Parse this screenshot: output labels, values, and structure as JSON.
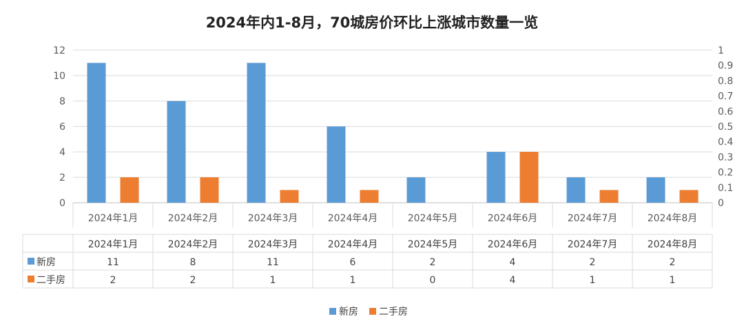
{
  "chart_data": {
    "type": "bar",
    "title": "2024年内1-8月，70城房价环比上涨城市数量一览",
    "categories": [
      "2024年1月",
      "2024年2月",
      "2024年3月",
      "2024年4月",
      "2024年5月",
      "2024年6月",
      "2024年7月",
      "2024年8月"
    ],
    "series": [
      {
        "name": "新房",
        "values": [
          11,
          8,
          11,
          6,
          2,
          4,
          2,
          2
        ],
        "color": "#5B9BD5"
      },
      {
        "name": "二手房",
        "values": [
          2,
          2,
          1,
          1,
          0,
          4,
          1,
          1
        ],
        "color": "#ED7D31"
      }
    ],
    "ylim": [
      0,
      12
    ],
    "y_ticks": [
      0,
      2,
      4,
      6,
      8,
      10,
      12
    ],
    "y2lim": [
      0,
      1
    ],
    "y2_ticks": [
      "0",
      "0.1",
      "0.2",
      "0.3",
      "0.4",
      "0.5",
      "0.6",
      "0.7",
      "0.8",
      "0.9",
      "1"
    ],
    "grid": true,
    "data_table": true,
    "legend_position": "bottom"
  }
}
